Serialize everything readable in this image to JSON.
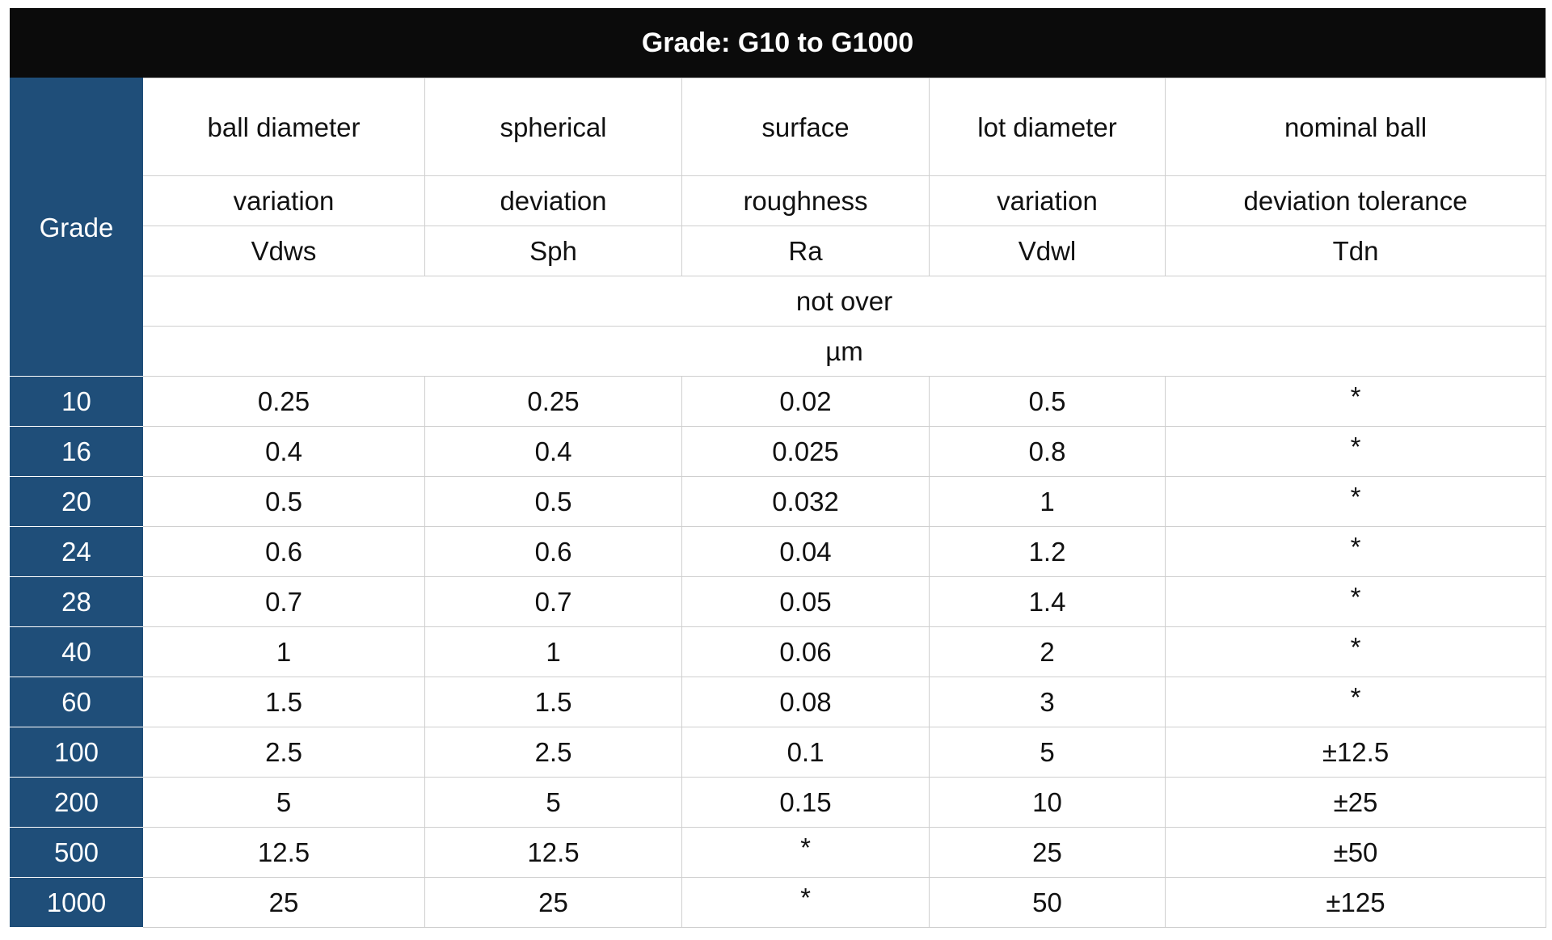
{
  "title": "Grade: G10 to G1000",
  "header": {
    "grade_label": "Grade",
    "columns": [
      {
        "line1": "ball diameter",
        "line2": "variation",
        "symbol": "Vdws"
      },
      {
        "line1": "spherical",
        "line2": "deviation",
        "symbol": "Sph"
      },
      {
        "line1": "surface",
        "line2": "roughness",
        "symbol": "Ra"
      },
      {
        "line1": "lot diameter",
        "line2": "variation",
        "symbol": "Vdwl"
      },
      {
        "line1": "nominal ball",
        "line2": "deviation tolerance",
        "symbol": "Tdn"
      }
    ],
    "limit_note": "not over",
    "unit": "µm"
  },
  "rows": [
    {
      "grade": "10",
      "values": [
        "0.25",
        "0.25",
        "0.02",
        "0.5",
        "*"
      ]
    },
    {
      "grade": "16",
      "values": [
        "0.4",
        "0.4",
        "0.025",
        "0.8",
        "*"
      ]
    },
    {
      "grade": "20",
      "values": [
        "0.5",
        "0.5",
        "0.032",
        "1",
        "*"
      ]
    },
    {
      "grade": "24",
      "values": [
        "0.6",
        "0.6",
        "0.04",
        "1.2",
        "*"
      ]
    },
    {
      "grade": "28",
      "values": [
        "0.7",
        "0.7",
        "0.05",
        "1.4",
        "*"
      ]
    },
    {
      "grade": "40",
      "values": [
        "1",
        "1",
        "0.06",
        "2",
        "*"
      ]
    },
    {
      "grade": "60",
      "values": [
        "1.5",
        "1.5",
        "0.08",
        "3",
        "*"
      ]
    },
    {
      "grade": "100",
      "values": [
        "2.5",
        "2.5",
        "0.1",
        "5",
        "±12.5"
      ]
    },
    {
      "grade": "200",
      "values": [
        "5",
        "5",
        "0.15",
        "10",
        "±25"
      ]
    },
    {
      "grade": "500",
      "values": [
        "12.5",
        "12.5",
        "*",
        "25",
        "±50"
      ]
    },
    {
      "grade": "1000",
      "values": [
        "25",
        "25",
        "*",
        "50",
        "±125"
      ]
    }
  ],
  "colors": {
    "title_background": "#0b0b0b",
    "grade_column_background": "#1f4e79",
    "grid_lines": "#cfcfcf"
  }
}
